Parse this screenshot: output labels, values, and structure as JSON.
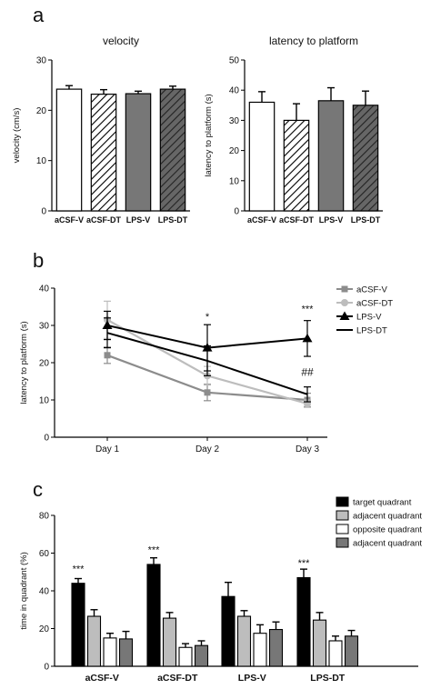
{
  "panel_letters": [
    "a",
    "b",
    "c"
  ],
  "colors": {
    "white": "#ffffff",
    "dark": "#000000",
    "mid_gray": "#777777",
    "hatched_dark": "#555555",
    "light_gray": "#bdbdbd",
    "line_gray": "#999999"
  },
  "chart_data": [
    {
      "type": "bar",
      "title": "velocity",
      "ylabel": "velocity (cm/s)",
      "ylim": [
        0,
        30
      ],
      "yticks": [
        0,
        10,
        20,
        30
      ],
      "categories": [
        "aCSF-V",
        "aCSF-DT",
        "LPS-V",
        "LPS-DT"
      ],
      "values": [
        24.2,
        23.2,
        23.3,
        24.2
      ],
      "errors": [
        0.7,
        0.9,
        0.5,
        0.6
      ],
      "fills": [
        "white",
        "hatched-white",
        "gray",
        "hatched-dark"
      ]
    },
    {
      "type": "bar",
      "title": "latency to platform",
      "ylabel": "latency to platform (s)",
      "ylim": [
        0,
        50
      ],
      "yticks": [
        0,
        10,
        20,
        30,
        40,
        50
      ],
      "categories": [
        "aCSF-V",
        "aCSF-DT",
        "LPS-V",
        "LPS-DT"
      ],
      "values": [
        36,
        30,
        36.5,
        35
      ],
      "errors": [
        3.5,
        5.5,
        4.3,
        4.7
      ],
      "fills": [
        "white",
        "hatched-white",
        "gray",
        "hatched-dark"
      ]
    },
    {
      "type": "line",
      "ylabel": "latency to platform (s)",
      "ylim": [
        0,
        40
      ],
      "yticks": [
        0,
        10,
        20,
        30,
        40
      ],
      "categories": [
        "Day 1",
        "Day 2",
        "Day 3"
      ],
      "series": [
        {
          "name": "aCSF-V",
          "values": [
            22.0,
            12.0,
            10.0
          ],
          "errors": [
            2.2,
            2.2,
            1.8
          ],
          "marker": "square",
          "color": "#8c8c8c"
        },
        {
          "name": "aCSF-DT",
          "values": [
            31.5,
            16.5,
            9.0
          ],
          "errors": [
            5.0,
            2.5,
            1.0
          ],
          "marker": "circle",
          "color": "#bdbdbd"
        },
        {
          "name": "LPS-V",
          "values": [
            30.0,
            24.0,
            26.5
          ],
          "errors": [
            3.8,
            6.2,
            4.8
          ],
          "marker": "triangle",
          "color": "#000000"
        },
        {
          "name": "LPS-DT",
          "values": [
            28.0,
            20.5,
            11.5
          ],
          "errors": [
            4.0,
            4.0,
            2.0
          ],
          "marker": "none",
          "color": "#000000"
        }
      ],
      "annotations": [
        {
          "text": "*",
          "category": "Day 2",
          "y": 31.5
        },
        {
          "text": "***",
          "category": "Day 3",
          "y": 33.5
        },
        {
          "text": "##",
          "category": "Day 3",
          "y": 16.5
        }
      ]
    },
    {
      "type": "bar",
      "ylabel": "time in quadrant (%)",
      "ylim": [
        0,
        80
      ],
      "yticks": [
        0,
        20,
        40,
        60,
        80
      ],
      "categories": [
        "aCSF-V",
        "aCSF-DT",
        "LPS-V",
        "LPS-DT"
      ],
      "series": [
        {
          "name": "target quadrant",
          "values": [
            44,
            54,
            37,
            47
          ],
          "errors": [
            2.5,
            3.5,
            7.5,
            4.5
          ],
          "color": "#000000"
        },
        {
          "name": "adjacent quadrant",
          "values": [
            26.5,
            25.5,
            26.5,
            24.5
          ],
          "errors": [
            3.5,
            3.0,
            3.0,
            4.0
          ],
          "color": "#bdbdbd"
        },
        {
          "name": "opposite quadrant",
          "values": [
            15,
            10,
            17.5,
            13.5
          ],
          "errors": [
            2.5,
            2.0,
            4.5,
            2.5
          ],
          "color": "#ffffff"
        },
        {
          "name": "adjacent quadrant",
          "values": [
            14.5,
            11,
            19.5,
            16
          ],
          "errors": [
            4.0,
            2.5,
            4.0,
            3.0
          ],
          "color": "#777777"
        }
      ],
      "annotations": [
        {
          "text": "***",
          "category": "aCSF-V",
          "y": 50
        },
        {
          "text": "***",
          "category": "aCSF-DT",
          "y": 60
        },
        {
          "text": "***",
          "category": "LPS-DT",
          "y": 53
        }
      ],
      "legend": "top-right"
    }
  ]
}
